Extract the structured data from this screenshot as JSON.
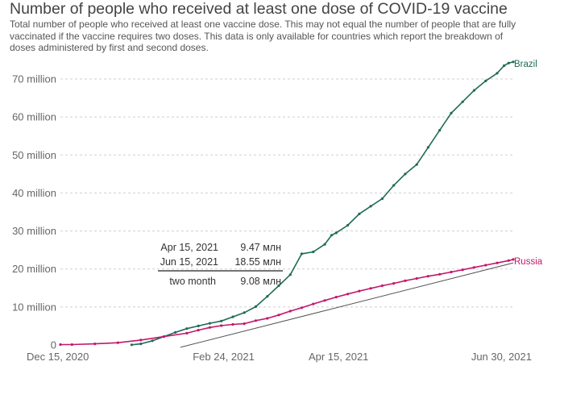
{
  "chart_data": {
    "type": "line",
    "title": "Number of people who received at least one dose of COVID-19 vaccine",
    "subtitle": "Total number of people who received at least one vaccine dose. This may not equal the number of people that are fully vaccinated if the vaccine requires two doses. This data is only available for countries which report the breakdown of doses administered by first and second doses.",
    "xlabel": "",
    "ylabel": "",
    "x_range": [
      "2020-12-15",
      "2021-06-30"
    ],
    "x_ticks": [
      "Dec 15, 2020",
      "Feb 24, 2021",
      "Apr 15, 2021",
      "Jun 30, 2021"
    ],
    "y_ticks": [
      "0",
      "10 million",
      "20 million",
      "30 million",
      "40 million",
      "50 million",
      "60 million",
      "70 million"
    ],
    "ylim": [
      0,
      74
    ],
    "y_unit": "million",
    "series": [
      {
        "name": "Brazil",
        "color": "#1f6b58",
        "x": [
          31,
          35,
          40,
          45,
          50,
          55,
          60,
          65,
          70,
          75,
          80,
          85,
          90,
          95,
          100,
          105,
          110,
          115,
          118,
          120,
          125,
          130,
          135,
          140,
          145,
          150,
          155,
          160,
          165,
          170,
          175,
          180,
          185,
          190,
          193,
          195,
          197
        ],
        "y": [
          0.05,
          0.3,
          1.1,
          2.2,
          3.3,
          4.3,
          5.0,
          5.7,
          6.3,
          7.4,
          8.5,
          10.1,
          12.8,
          15.6,
          18.5,
          24.0,
          24.5,
          26.5,
          28.9,
          29.5,
          31.5,
          34.5,
          36.5,
          38.5,
          42.0,
          45.0,
          47.5,
          52.0,
          56.5,
          61.0,
          64.0,
          67.0,
          69.5,
          71.5,
          73.5,
          74.2,
          74.5
        ]
      },
      {
        "name": "Russia",
        "color": "#c2186b",
        "x": [
          0,
          5,
          15,
          25,
          35,
          45,
          55,
          60,
          65,
          70,
          75,
          80,
          85,
          90,
          95,
          100,
          105,
          110,
          115,
          120,
          125,
          130,
          135,
          140,
          145,
          150,
          155,
          160,
          165,
          170,
          175,
          180,
          185,
          190,
          195,
          197
        ],
        "y": [
          0.1,
          0.1,
          0.3,
          0.6,
          1.3,
          2.2,
          3.1,
          3.9,
          4.6,
          5.1,
          5.4,
          5.6,
          6.4,
          7.0,
          7.9,
          8.9,
          9.8,
          10.8,
          11.7,
          12.6,
          13.4,
          14.2,
          14.9,
          15.6,
          16.2,
          16.9,
          17.5,
          18.1,
          18.6,
          19.2,
          19.8,
          20.4,
          21.0,
          21.6,
          22.2,
          22.5
        ]
      }
    ],
    "trend_line": {
      "x": [
        55,
        197
      ],
      "y": [
        -0.4,
        21.6
      ],
      "color": "#555555"
    },
    "annotation": {
      "rows": [
        {
          "label": "Apr 15, 2021",
          "value": "9.47 млн"
        },
        {
          "label": "Jun 15, 2021",
          "value": "18.55 млн"
        }
      ],
      "total": {
        "label": "two month",
        "value": "9.08 млн"
      }
    }
  }
}
